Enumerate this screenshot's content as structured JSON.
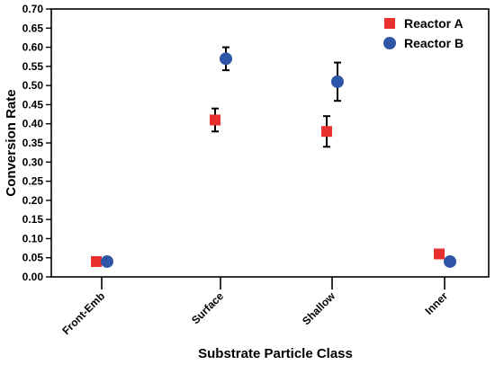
{
  "chart_data": {
    "type": "scatter",
    "title": "",
    "xlabel": "Substrate Particle Class",
    "ylabel": "Conversion Rate",
    "categories": [
      "Front-Emb",
      "Surface",
      "Shallow",
      "Inner"
    ],
    "ylim": [
      0,
      0.7
    ],
    "yticks": [
      "0.00",
      "0.05",
      "0.10",
      "0.15",
      "0.20",
      "0.25",
      "0.30",
      "0.35",
      "0.40",
      "0.45",
      "0.50",
      "0.55",
      "0.60",
      "0.65",
      "0.70"
    ],
    "grid": false,
    "legend_position": "top-right",
    "series": [
      {
        "name": "Reactor A",
        "marker": "square",
        "color": "#e8302e",
        "values": [
          0.04,
          0.41,
          0.38,
          0.06
        ],
        "err_low": [
          0.035,
          0.38,
          0.34,
          0.05
        ],
        "err_high": [
          0.045,
          0.44,
          0.42,
          0.07
        ]
      },
      {
        "name": "Reactor B",
        "marker": "circle",
        "color": "#2f56a6",
        "values": [
          0.04,
          0.57,
          0.51,
          0.04
        ],
        "err_low": [
          0.03,
          0.54,
          0.46,
          0.03
        ],
        "err_high": [
          0.05,
          0.6,
          0.56,
          0.05
        ]
      }
    ]
  }
}
